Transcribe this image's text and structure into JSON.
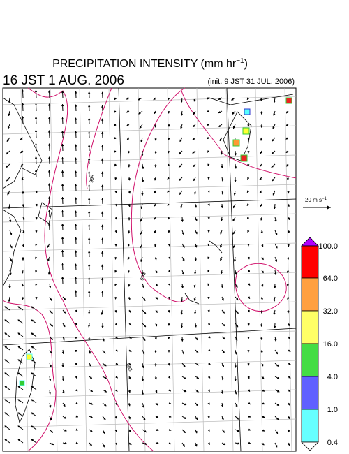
{
  "header": {
    "title": {
      "text": "PRECIPITATION INTENSITY (mm hr",
      "superscript": "−1",
      "suffix": ")"
    },
    "valid_time": "16 JST 1 AUG. 2006",
    "init_time": "(init. 9 JST 31 JUL. 2006)"
  },
  "map": {
    "contour_labels": [
      "998",
      "998",
      "998"
    ]
  },
  "wind_scale": {
    "text": "20 m s",
    "superscript": "−1"
  },
  "colorbar": {
    "labels": [
      "100.0",
      "64.0",
      "32.0",
      "16.0",
      "4.0",
      "1.0",
      "0.4"
    ]
  }
}
